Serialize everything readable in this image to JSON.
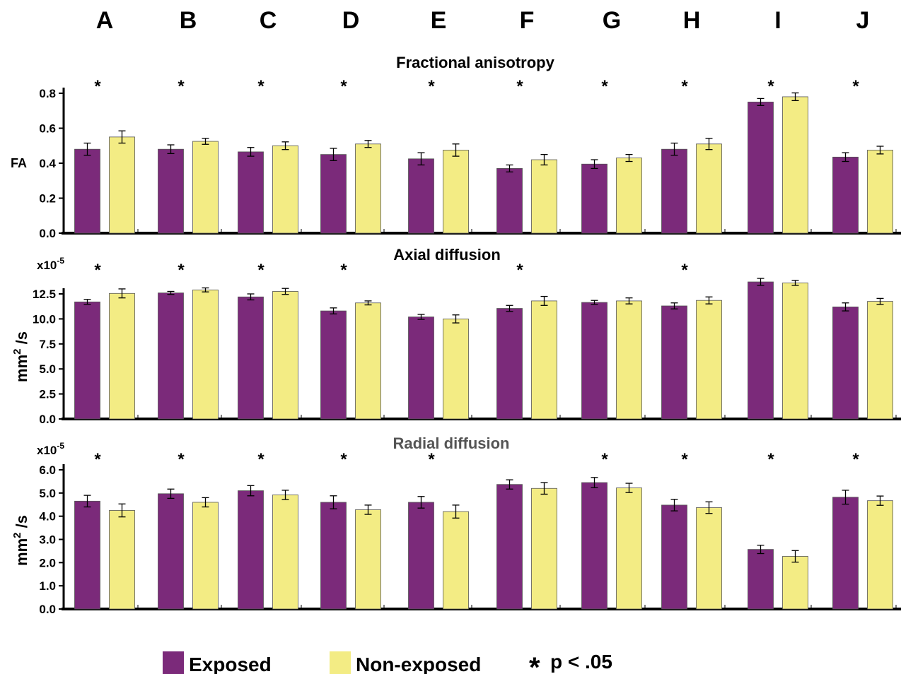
{
  "colors": {
    "exposed": "#7b2a7a",
    "non_exposed": "#f3ec84",
    "axis": "#000000",
    "bar_stroke": "#555555"
  },
  "categories": [
    "A",
    "B",
    "C",
    "D",
    "E",
    "F",
    "G",
    "H",
    "I",
    "J"
  ],
  "legend": {
    "exposed_label": "Exposed",
    "non_exposed_label": "Non-exposed",
    "significance_symbol": "*",
    "significance_label": "p < .05"
  },
  "chart_data": [
    {
      "type": "bar",
      "title": "Fractional anisotropy",
      "ylabel": "FA",
      "multiplier": "",
      "categories": [
        "A",
        "B",
        "C",
        "D",
        "E",
        "F",
        "G",
        "H",
        "I",
        "J"
      ],
      "ylim": [
        0,
        0.8
      ],
      "yticks": [
        0.0,
        0.2,
        0.4,
        0.6,
        0.8
      ],
      "ytick_labels": [
        "0.0",
        "0.2",
        "0.4",
        "0.6",
        "0.8"
      ],
      "series": [
        {
          "name": "Exposed",
          "values": [
            0.48,
            0.48,
            0.465,
            0.45,
            0.425,
            0.37,
            0.395,
            0.48,
            0.75,
            0.435
          ],
          "errors": [
            0.035,
            0.025,
            0.025,
            0.035,
            0.035,
            0.02,
            0.025,
            0.035,
            0.02,
            0.025
          ]
        },
        {
          "name": "Non-exposed",
          "values": [
            0.55,
            0.525,
            0.5,
            0.51,
            0.475,
            0.42,
            0.43,
            0.51,
            0.78,
            0.475
          ],
          "errors": [
            0.035,
            0.017,
            0.022,
            0.02,
            0.035,
            0.03,
            0.02,
            0.032,
            0.022,
            0.022
          ]
        }
      ],
      "significant": [
        true,
        true,
        true,
        true,
        true,
        true,
        true,
        true,
        true,
        true
      ]
    },
    {
      "type": "bar",
      "title": "Axial diffusion",
      "ylabel": "mm2 /s",
      "multiplier": "x10-5",
      "categories": [
        "A",
        "B",
        "C",
        "D",
        "E",
        "F",
        "G",
        "H",
        "I",
        "J"
      ],
      "ylim": [
        0,
        12.5
      ],
      "yticks": [
        0.0,
        2.5,
        5.0,
        7.5,
        10.0,
        12.5
      ],
      "ytick_labels": [
        "0.0",
        "2.5",
        "5.0",
        "7.5",
        "10.0",
        "12.5"
      ],
      "series": [
        {
          "name": "Exposed",
          "values": [
            11.7,
            12.6,
            12.2,
            10.8,
            10.2,
            11.05,
            11.65,
            11.3,
            13.7,
            11.2
          ],
          "errors": [
            0.25,
            0.15,
            0.3,
            0.3,
            0.25,
            0.3,
            0.2,
            0.3,
            0.35,
            0.4
          ]
        },
        {
          "name": "Non-exposed",
          "values": [
            12.55,
            12.9,
            12.75,
            11.6,
            10.0,
            11.8,
            11.8,
            11.85,
            13.6,
            11.75
          ],
          "errors": [
            0.45,
            0.2,
            0.3,
            0.2,
            0.4,
            0.45,
            0.3,
            0.35,
            0.25,
            0.3
          ]
        }
      ],
      "significant": [
        true,
        true,
        true,
        true,
        false,
        true,
        false,
        true,
        false,
        false
      ]
    },
    {
      "type": "bar",
      "title": "Radial diffusion",
      "ylabel": "mm2 /s",
      "multiplier": "x10-5",
      "categories": [
        "A",
        "B",
        "C",
        "D",
        "E",
        "F",
        "G",
        "H",
        "I",
        "J"
      ],
      "ylim": [
        0,
        6.0
      ],
      "yticks": [
        0.0,
        1.0,
        2.0,
        3.0,
        4.0,
        5.0,
        6.0
      ],
      "ytick_labels": [
        "0.0",
        "1.0",
        "2.0",
        "3.0",
        "4.0",
        "5.0",
        "6.0"
      ],
      "series": [
        {
          "name": "Exposed",
          "values": [
            4.65,
            4.97,
            5.1,
            4.6,
            4.6,
            5.37,
            5.45,
            4.48,
            2.57,
            4.82
          ],
          "errors": [
            0.25,
            0.2,
            0.22,
            0.28,
            0.25,
            0.2,
            0.22,
            0.25,
            0.18,
            0.3
          ]
        },
        {
          "name": "Non-exposed",
          "values": [
            4.25,
            4.6,
            4.92,
            4.28,
            4.2,
            5.2,
            5.22,
            4.37,
            2.27,
            4.67
          ],
          "errors": [
            0.28,
            0.2,
            0.2,
            0.2,
            0.28,
            0.25,
            0.2,
            0.25,
            0.25,
            0.2
          ]
        }
      ],
      "significant": [
        true,
        true,
        true,
        true,
        true,
        false,
        true,
        true,
        true,
        true
      ]
    }
  ]
}
